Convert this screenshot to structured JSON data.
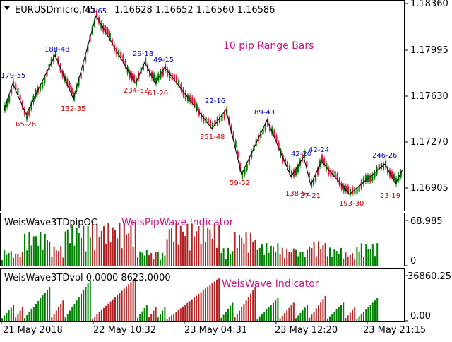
{
  "main_header": {
    "symbol_text": "EURUSDmicro,M5",
    "ohlc_text": "1.16628 1.16652 1.16560 1.16586"
  },
  "main_annotation": "10 pip Range Bars",
  "main_axis_labels": [
    "1.18360",
    "1.17995",
    "1.17630",
    "1.17270",
    "1.16905"
  ],
  "wave_labels_blue": [
    "179-55",
    "188-48",
    "43-65",
    "29-18",
    "49-15",
    "22-16",
    "89-43",
    "42-20",
    "42-24",
    "246-26"
  ],
  "wave_labels_red": [
    "65-26",
    "132-35",
    "234-52",
    "61-20",
    "351-48",
    "59-52",
    "138-52",
    "27-21",
    "193-30",
    "23-19"
  ],
  "pip_panel": {
    "name": "WeisWave3TDpipOC",
    "annotation": "WeisPipWave Indicator",
    "axis_top": "68.985",
    "axis_zero": "0"
  },
  "vol_panel": {
    "name": "WeisWave3TDvol 0.0000 8623.0000",
    "annotation": "WeisWave Indicator",
    "axis_top": "36860.25",
    "axis_zero": "0.00"
  },
  "time_axis": [
    "21 May 2018",
    "22 May 10:32",
    "23 May 04:31",
    "23 May 12:20",
    "23 May 21:15"
  ],
  "colors": {
    "up": "#008000",
    "down": "#dc143c",
    "wave_red": "#b22222",
    "blue_text": "#0000cd",
    "red_text": "#cc0000",
    "annotation": "#c71585"
  }
}
